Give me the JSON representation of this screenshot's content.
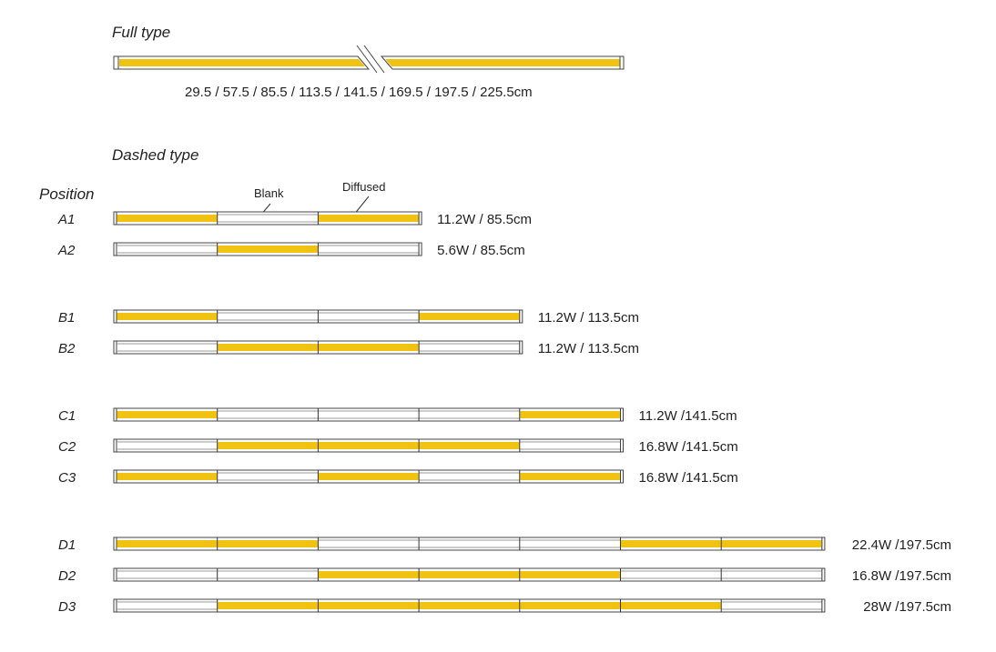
{
  "full_type": {
    "title": "Full type",
    "lengths_label": "29.5 / 57.5 / 85.5 / 113.5 / 141.5 / 169.5 / 197.5 / 225.5cm"
  },
  "dashed_type": {
    "title": "Dashed type",
    "position_header": "Position",
    "annotations": {
      "blank": "Blank",
      "diffused": "Diffused"
    },
    "colors": {
      "lit": "#f0c313",
      "blank": "#ffffff",
      "outline": "#444444"
    },
    "rows": [
      {
        "position": "A1",
        "segments": [
          1,
          0,
          1
        ],
        "spec": "11.2W / 85.5cm"
      },
      {
        "position": "A2",
        "segments": [
          0,
          1,
          0
        ],
        "spec": "5.6W / 85.5cm"
      },
      {
        "position": "B1",
        "segments": [
          1,
          0,
          0,
          1
        ],
        "spec": "11.2W / 113.5cm"
      },
      {
        "position": "B2",
        "segments": [
          0,
          1,
          1,
          0
        ],
        "spec": "11.2W / 113.5cm"
      },
      {
        "position": "C1",
        "segments": [
          1,
          0,
          0,
          0,
          1
        ],
        "spec": "11.2W /141.5cm"
      },
      {
        "position": "C2",
        "segments": [
          0,
          1,
          1,
          1,
          0
        ],
        "spec": "16.8W /141.5cm"
      },
      {
        "position": "C3",
        "segments": [
          1,
          0,
          1,
          0,
          1
        ],
        "spec": "16.8W /141.5cm"
      },
      {
        "position": "D1",
        "segments": [
          1,
          1,
          0,
          0,
          0,
          1,
          1
        ],
        "spec": "22.4W /197.5cm"
      },
      {
        "position": "D2",
        "segments": [
          0,
          0,
          1,
          1,
          1,
          0,
          0
        ],
        "spec": "16.8W /197.5cm"
      },
      {
        "position": "D3",
        "segments": [
          0,
          1,
          1,
          1,
          1,
          1,
          0
        ],
        "spec": "28W /197.5cm"
      }
    ]
  }
}
